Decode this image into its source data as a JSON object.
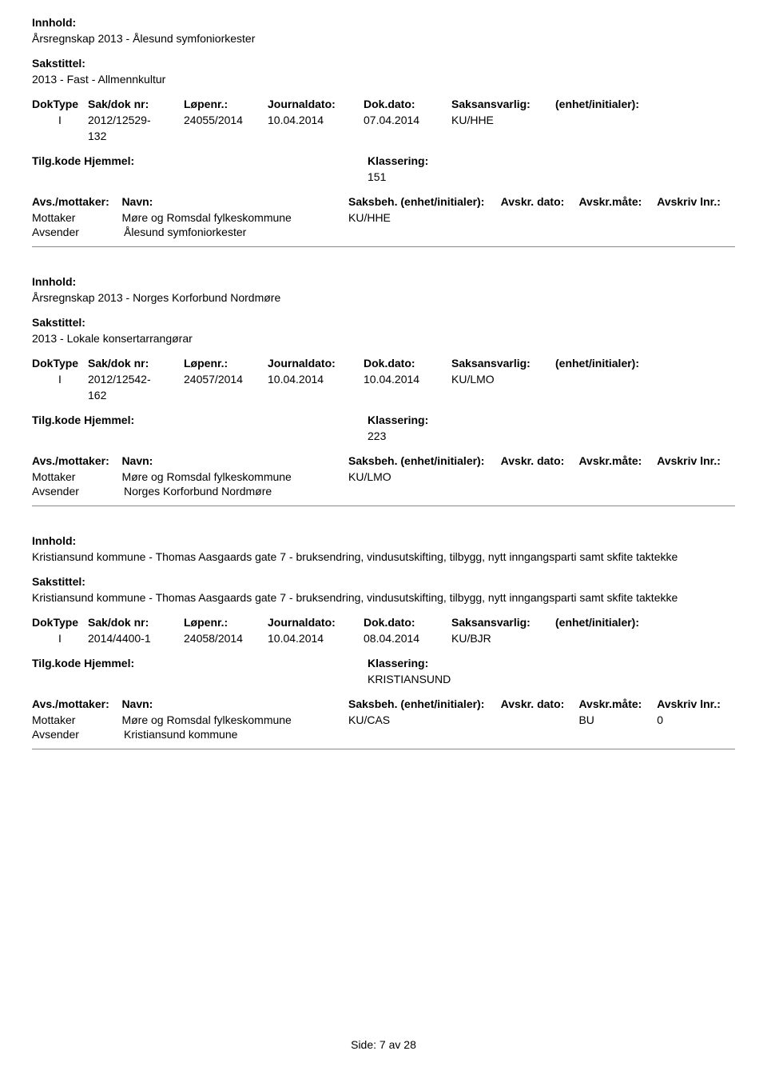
{
  "labels": {
    "innhold": "Innhold:",
    "sakstittel": "Sakstittel:",
    "doktype": "DokType",
    "sakdoknr": "Sak/dok nr:",
    "lopenr": "Løpenr.:",
    "journaldato": "Journaldato:",
    "dokdato": "Dok.dato:",
    "saksansvarlig": "Saksansvarlig:",
    "enhet": "(enhet/initialer):",
    "tilgkode": "Tilg.kode",
    "hjemmel": "Hjemmel:",
    "klassering": "Klassering:",
    "avsmottaker": "Avs./mottaker:",
    "navn": "Navn:",
    "saksbeh": "Saksbeh.",
    "saksbeh_enhet": "(enhet/initialer):",
    "avskrdato": "Avskr. dato:",
    "avskrmate": "Avskr.måte:",
    "avskrivlnr": "Avskriv lnr.:",
    "mottaker": "Mottaker",
    "avsender": "Avsender"
  },
  "records": [
    {
      "innhold": "Årsregnskap 2013 - Ålesund symfoniorkester",
      "sakstittel": "2013 - Fast - Allmennkultur",
      "doktype": "I",
      "sakdoknr_1": "2012/12529-",
      "sakdoknr_2": "132",
      "lopenr": "24055/2014",
      "journaldato": "10.04.2014",
      "dokdato": "07.04.2014",
      "saksansvarlig": "KU/HHE",
      "klassering": "151",
      "mottaker_navn": "Møre og Romsdal fylkeskommune",
      "mottaker_saksbeh": "KU/HHE",
      "mottaker_avskrmate": "",
      "mottaker_avskrivlnr": "",
      "avsender_navn": "Ålesund symfoniorkester"
    },
    {
      "innhold": "Årsregnskap 2013 - Norges Korforbund Nordmøre",
      "sakstittel": "2013 - Lokale konsertarrangørar",
      "doktype": "I",
      "sakdoknr_1": "2012/12542-",
      "sakdoknr_2": "162",
      "lopenr": "24057/2014",
      "journaldato": "10.04.2014",
      "dokdato": "10.04.2014",
      "saksansvarlig": "KU/LMO",
      "klassering": "223",
      "mottaker_navn": "Møre og Romsdal fylkeskommune",
      "mottaker_saksbeh": "KU/LMO",
      "mottaker_avskrmate": "",
      "mottaker_avskrivlnr": "",
      "avsender_navn": "Norges Korforbund Nordmøre"
    },
    {
      "innhold": "Kristiansund kommune - Thomas Aasgaards gate 7 - bruksendring, vindusutskifting, tilbygg, nytt inngangsparti samt skfite taktekke",
      "sakstittel": "Kristiansund kommune - Thomas Aasgaards gate 7 - bruksendring, vindusutskifting, tilbygg, nytt inngangsparti samt skfite taktekke",
      "doktype": "I",
      "sakdoknr_1": "2014/4400-1",
      "sakdoknr_2": "",
      "lopenr": "24058/2014",
      "journaldato": "10.04.2014",
      "dokdato": "08.04.2014",
      "saksansvarlig": "KU/BJR",
      "klassering": "KRISTIANSUND",
      "mottaker_navn": "Møre og Romsdal fylkeskommune",
      "mottaker_saksbeh": "KU/CAS",
      "mottaker_avskrmate": "BU",
      "mottaker_avskrivlnr": "0",
      "avsender_navn": "Kristiansund kommune"
    }
  ],
  "footer": {
    "side_label": "Side:",
    "current": "7",
    "av": "av",
    "total": "28"
  },
  "styling": {
    "background_color": "#ffffff",
    "text_color": "#000000",
    "font_family": "Arial, Helvetica, sans-serif",
    "font_size_pt": 11,
    "separator_color": "#888888"
  }
}
